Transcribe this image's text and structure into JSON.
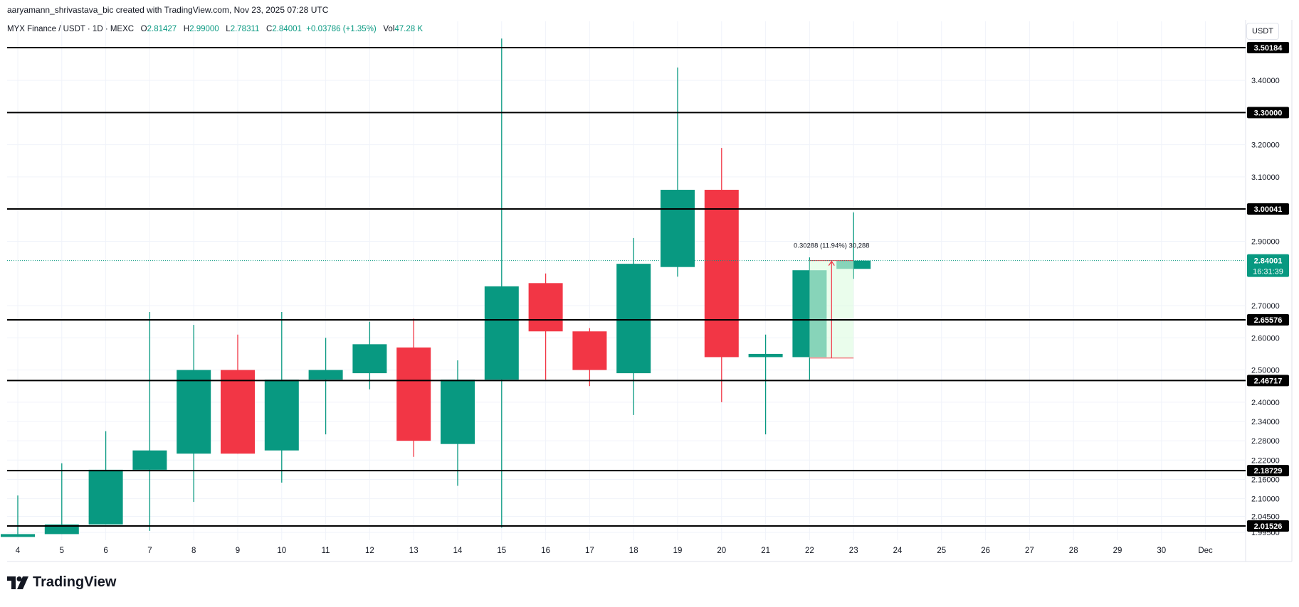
{
  "caption": "aaryamann_shrivastava_bic created with TradingView.com, Nov 23, 2025 07:28 UTC",
  "legend": {
    "symbol": "MYX Finance / USDT · 1D · MEXC",
    "o_label": "O",
    "o": "2.81427",
    "h_label": "H",
    "h": "2.99000",
    "l_label": "L",
    "l": "2.78311",
    "c_label": "C",
    "c": "2.84001",
    "change": "+0.03786 (+1.35%)",
    "vol_label": "Vol",
    "vol": "47.28 K"
  },
  "currency": "USDT",
  "countdown": "16:31:39",
  "brand": "TradingView",
  "colors": {
    "up": "#089981",
    "down": "#f23645",
    "measure": "#f23645",
    "measure_fill": "#dcfce0"
  },
  "chart_data": {
    "type": "candlestick",
    "ylim": [
      1.975,
      3.55
    ],
    "x_tick_labels": [
      "4",
      "5",
      "6",
      "7",
      "8",
      "9",
      "10",
      "11",
      "12",
      "13",
      "14",
      "15",
      "16",
      "17",
      "18",
      "19",
      "20",
      "21",
      "22",
      "23",
      "24",
      "25",
      "26",
      "27",
      "28",
      "29",
      "30",
      "Dec"
    ],
    "y_tick_labels": [
      3.4,
      3.2,
      3.1,
      2.9,
      2.7,
      2.6,
      2.5,
      2.4,
      2.34,
      2.28,
      2.22,
      2.16,
      2.1,
      2.045,
      1.995
    ],
    "y_tick_text": [
      "3.40000",
      "3.20000",
      "3.10000",
      "2.90000",
      "2.70000",
      "2.60000",
      "2.50000",
      "2.40000",
      "2.34000",
      "2.28000",
      "2.22000",
      "2.16000",
      "2.10000",
      "2.04500",
      "1.99500"
    ],
    "candles": [
      {
        "date": "4",
        "o": 1.99,
        "h": 2.11,
        "l": 1.99,
        "c": 1.99
      },
      {
        "date": "5",
        "o": 1.99,
        "h": 2.21,
        "l": 1.99,
        "c": 2.02
      },
      {
        "date": "6",
        "o": 2.02,
        "h": 2.31,
        "l": 2.02,
        "c": 2.19
      },
      {
        "date": "7",
        "o": 2.19,
        "h": 2.68,
        "l": 2.0,
        "c": 2.25
      },
      {
        "date": "8",
        "o": 2.24,
        "h": 2.64,
        "l": 2.09,
        "c": 2.5
      },
      {
        "date": "9",
        "o": 2.5,
        "h": 2.61,
        "l": 2.24,
        "c": 2.24
      },
      {
        "date": "10",
        "o": 2.25,
        "h": 2.68,
        "l": 2.15,
        "c": 2.47
      },
      {
        "date": "11",
        "o": 2.47,
        "h": 2.6,
        "l": 2.3,
        "c": 2.5
      },
      {
        "date": "12",
        "o": 2.49,
        "h": 2.65,
        "l": 2.44,
        "c": 2.58
      },
      {
        "date": "13",
        "o": 2.57,
        "h": 2.66,
        "l": 2.23,
        "c": 2.28
      },
      {
        "date": "14",
        "o": 2.27,
        "h": 2.53,
        "l": 2.14,
        "c": 2.47
      },
      {
        "date": "15",
        "o": 2.47,
        "h": 3.53,
        "l": 2.01,
        "c": 2.76
      },
      {
        "date": "16",
        "o": 2.77,
        "h": 2.8,
        "l": 2.47,
        "c": 2.62
      },
      {
        "date": "17",
        "o": 2.62,
        "h": 2.63,
        "l": 2.45,
        "c": 2.5
      },
      {
        "date": "18",
        "o": 2.49,
        "h": 2.91,
        "l": 2.36,
        "c": 2.83
      },
      {
        "date": "19",
        "o": 2.82,
        "h": 3.44,
        "l": 2.79,
        "c": 3.06
      },
      {
        "date": "20",
        "o": 3.06,
        "h": 3.19,
        "l": 2.4,
        "c": 2.54
      },
      {
        "date": "21",
        "o": 2.54,
        "h": 2.61,
        "l": 2.3,
        "c": 2.55
      },
      {
        "date": "22",
        "o": 2.54,
        "h": 2.85,
        "l": 2.47,
        "c": 2.81
      },
      {
        "date": "23",
        "o": 2.81427,
        "h": 2.99,
        "l": 2.78311,
        "c": 2.84001
      }
    ],
    "levels": [
      3.50184,
      3.3,
      3.00041,
      2.65576,
      2.46717,
      2.18729,
      2.01526
    ],
    "level_labels": [
      "3.50184",
      "3.30000",
      "3.00041",
      "2.65576",
      "2.46717",
      "2.18729",
      "2.01526"
    ],
    "last_price": 2.84001,
    "last_price_label": "2.84001",
    "measure": {
      "from_date": "22",
      "to_date": "23",
      "from_price": 2.53713,
      "to_price": 2.84001,
      "label": "0.30288 (11.94%) 30,288"
    }
  }
}
